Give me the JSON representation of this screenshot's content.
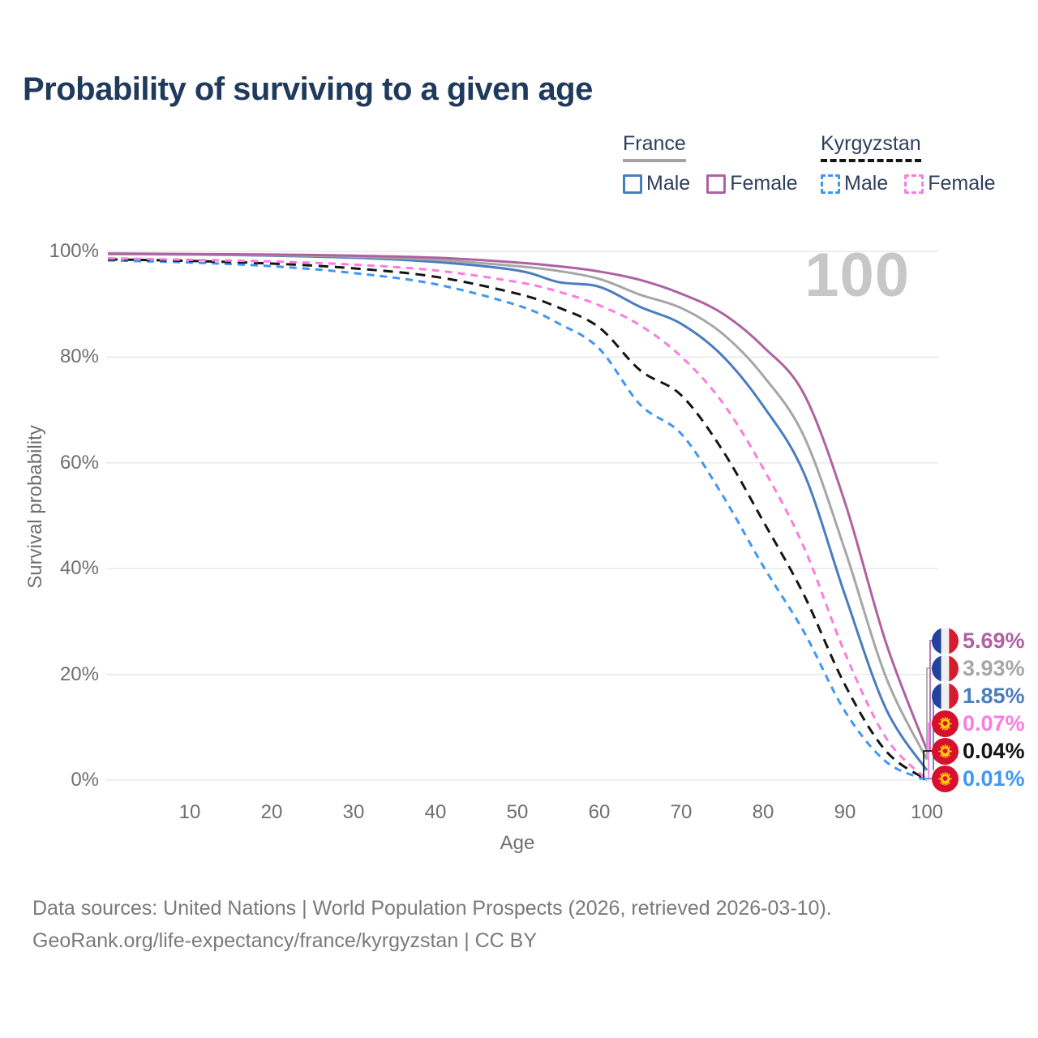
{
  "page": {
    "title": "Probability of surviving to a given age",
    "background_color": "#ffffff",
    "title_color": "#1f3a5c"
  },
  "legend": {
    "groups": [
      {
        "country": "France",
        "underline_style": "solid",
        "underline_color": "#a3a3a3",
        "items": [
          {
            "label": "Male",
            "color": "#4a7dbe",
            "dashed": false
          },
          {
            "label": "Female",
            "color": "#ae62a2",
            "dashed": false
          }
        ]
      },
      {
        "country": "Kyrgyzstan",
        "underline_style": "dashed",
        "underline_color": "#141414",
        "items": [
          {
            "label": "Male",
            "color": "#3f97f2",
            "dashed": true
          },
          {
            "label": "Female",
            "color": "#fb7ce0",
            "dashed": true
          }
        ]
      }
    ]
  },
  "watermark": "100",
  "chart_data": {
    "type": "line",
    "title": "Probability of surviving to a given age",
    "xlabel": "Age",
    "ylabel": "Survival probability",
    "xlim": [
      0,
      100
    ],
    "ylim": [
      0,
      100
    ],
    "grid": "horizontal",
    "legend_position": "top-right",
    "xtick_labels": [
      "10",
      "20",
      "30",
      "40",
      "50",
      "60",
      "70",
      "80",
      "90",
      "100"
    ],
    "ytick_labels_top_to_bottom": [
      "100%",
      "80%",
      "60%",
      "40%",
      "20%",
      "0%"
    ],
    "ages": [
      0,
      10,
      20,
      30,
      40,
      50,
      55,
      60,
      65,
      70,
      75,
      80,
      85,
      90,
      95,
      100
    ],
    "series": [
      {
        "name": "France Female",
        "country": "France",
        "sex": "Female",
        "color": "#ae62a2",
        "line_style": "solid",
        "end_label": "5.69%",
        "flag": "france",
        "values": [
          99.6,
          99.5,
          99.4,
          99.2,
          98.8,
          97.9,
          97.2,
          96.2,
          94.6,
          92.0,
          88.3,
          82.0,
          73.0,
          52.5,
          26.0,
          5.69
        ]
      },
      {
        "name": "France Both sexes",
        "country": "France",
        "sex": "Both sexes",
        "color": "#a6a6a6",
        "line_style": "solid",
        "end_label": "3.93%",
        "flag": "france",
        "values": [
          99.5,
          99.4,
          99.3,
          99.0,
          98.4,
          97.2,
          96.3,
          94.8,
          91.8,
          89.3,
          84.5,
          76.5,
          65.0,
          43.5,
          19.5,
          3.93
        ]
      },
      {
        "name": "France Male",
        "country": "France",
        "sex": "Male",
        "color": "#4a7dbe",
        "line_style": "solid",
        "end_label": "1.85%",
        "flag": "france",
        "values": [
          99.5,
          99.4,
          99.2,
          98.8,
          98.0,
          96.4,
          94.2,
          93.3,
          89.5,
          86.3,
          80.3,
          70.8,
          58.0,
          35.0,
          13.5,
          1.85
        ]
      },
      {
        "name": "Kyrgyzstan Female",
        "country": "Kyrgyzstan",
        "sex": "Female",
        "color": "#fb7ce0",
        "line_style": "dashed",
        "end_label": "0.07%",
        "flag": "kyrgyzstan",
        "values": [
          98.7,
          98.4,
          98.1,
          97.5,
          96.4,
          94.2,
          92.4,
          89.8,
          86.0,
          80.1,
          71.5,
          59.0,
          44.0,
          24.0,
          8.0,
          0.07
        ]
      },
      {
        "name": "Kyrgyzstan Both sexes",
        "country": "Kyrgyzstan",
        "sex": "Both sexes",
        "color": "#141414",
        "line_style": "dashed",
        "end_label": "0.04%",
        "flag": "kyrgyzstan",
        "values": [
          98.5,
          98.2,
          97.7,
          96.8,
          95.2,
          92.0,
          89.4,
          85.6,
          77.5,
          72.8,
          62.5,
          49.0,
          35.0,
          18.0,
          5.5,
          0.04
        ]
      },
      {
        "name": "Kyrgyzstan Male",
        "country": "Kyrgyzstan",
        "sex": "Male",
        "color": "#3f97f2",
        "line_style": "dashed",
        "end_label": "0.01%",
        "flag": "kyrgyzstan",
        "values": [
          98.3,
          97.9,
          97.2,
          95.9,
          93.8,
          89.8,
          86.4,
          81.6,
          71.0,
          65.5,
          54.0,
          40.5,
          28.0,
          13.0,
          3.5,
          0.01
        ]
      }
    ]
  },
  "footer": {
    "line1": "Data sources: United Nations | World Population Prospects (2026, retrieved 2026-03-10).",
    "line2": "GeoRank.org/life-expectancy/france/kyrgyzstan | CC BY"
  }
}
